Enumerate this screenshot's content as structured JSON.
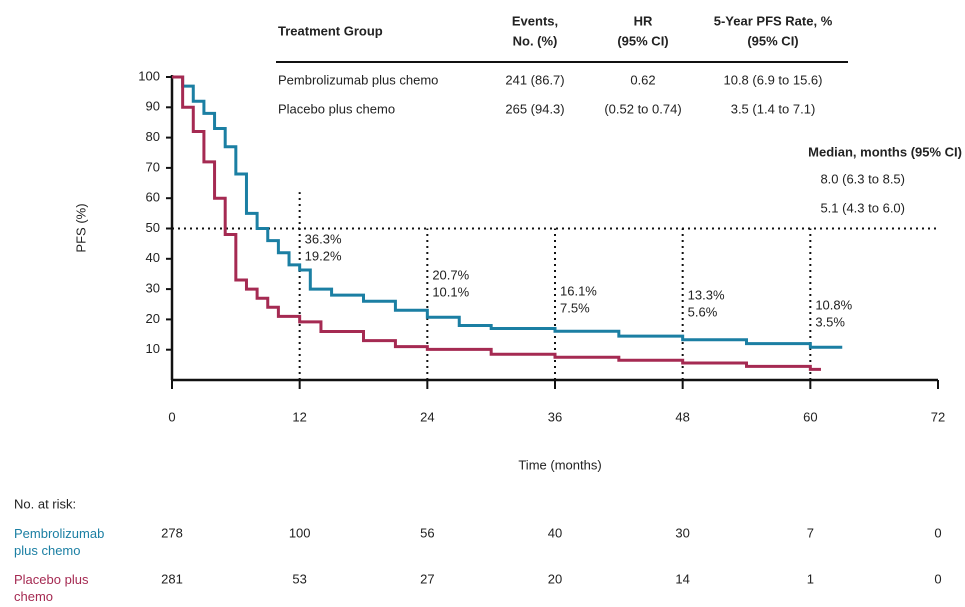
{
  "chart_data": {
    "type": "step",
    "xlabel": "Time (months)",
    "ylabel": "PFS (%)",
    "xlim": [
      0,
      72
    ],
    "xticks": [
      0,
      12,
      24,
      36,
      48,
      60,
      72
    ],
    "ylim": [
      0,
      100
    ],
    "yticks": [
      10,
      20,
      30,
      40,
      50,
      60,
      70,
      80,
      90,
      100
    ],
    "reference_line": 50,
    "series": [
      {
        "name": "Pembrolizumab plus chemo",
        "color": "#1b7fa3",
        "x": [
          0,
          1,
          2,
          3,
          4,
          5,
          6,
          7,
          8,
          9,
          10,
          11,
          12,
          13,
          15,
          18,
          21,
          24,
          27,
          30,
          36,
          42,
          48,
          54,
          60,
          63
        ],
        "values": [
          100,
          97,
          92,
          88,
          83,
          77,
          68,
          55,
          50,
          46,
          42,
          38,
          36.3,
          30,
          28,
          26,
          23,
          20.7,
          18,
          17,
          16.1,
          14.5,
          13.3,
          12,
          10.8,
          10.8
        ]
      },
      {
        "name": "Placebo plus chemo",
        "color": "#a52a52",
        "x": [
          0,
          1,
          2,
          3,
          4,
          5,
          6,
          7,
          8,
          9,
          10,
          12,
          14,
          18,
          21,
          24,
          30,
          36,
          42,
          48,
          54,
          60,
          61
        ],
        "values": [
          100,
          90,
          82,
          72,
          60,
          48,
          33,
          30,
          27,
          24,
          21,
          19.2,
          16,
          13,
          11,
          10.1,
          8.5,
          7.5,
          6.5,
          5.6,
          4.5,
          3.5,
          3.5
        ]
      }
    ],
    "landmarks": {
      "x": [
        12,
        24,
        36,
        48,
        60
      ],
      "series": [
        {
          "values": [
            36.3,
            20.7,
            16.1,
            13.3,
            10.8
          ],
          "value_labels": [
            "36.3%",
            "20.7%",
            "16.1%",
            "13.3%",
            "10.8%"
          ]
        },
        {
          "values": [
            19.2,
            10.1,
            7.5,
            5.6,
            3.5
          ],
          "value_labels": [
            "19.2%",
            "10.1%",
            "7.5%",
            "5.6%",
            "3.5%"
          ]
        }
      ]
    },
    "summary_table": {
      "headers": [
        [
          "Treatment Group"
        ],
        [
          "Events,",
          "No. (%)"
        ],
        [
          "HR",
          "(95% CI)"
        ],
        [
          "5-Year PFS Rate, %",
          "(95% CI)"
        ]
      ],
      "rows": [
        [
          "Pembrolizumab plus chemo",
          "241 (86.7)",
          "0.62",
          "10.8 (6.9 to 15.6)"
        ],
        [
          "Placebo plus chemo",
          "265 (94.3)",
          "(0.52 to 0.74)",
          "3.5 (1.4 to 7.1)"
        ]
      ]
    },
    "median": {
      "title": "Median, months (95% CI)",
      "values": [
        "8.0 (6.3 to 8.5)",
        "5.1 (4.3 to 6.0)"
      ]
    },
    "risk_table": {
      "title": "No. at risk:",
      "rows": [
        {
          "label": "Pembrolizumab plus chemo",
          "counts": [
            278,
            100,
            56,
            40,
            30,
            7,
            0
          ]
        },
        {
          "label": "Placebo plus chemo",
          "counts": [
            281,
            53,
            27,
            20,
            14,
            1,
            0
          ]
        }
      ]
    }
  }
}
